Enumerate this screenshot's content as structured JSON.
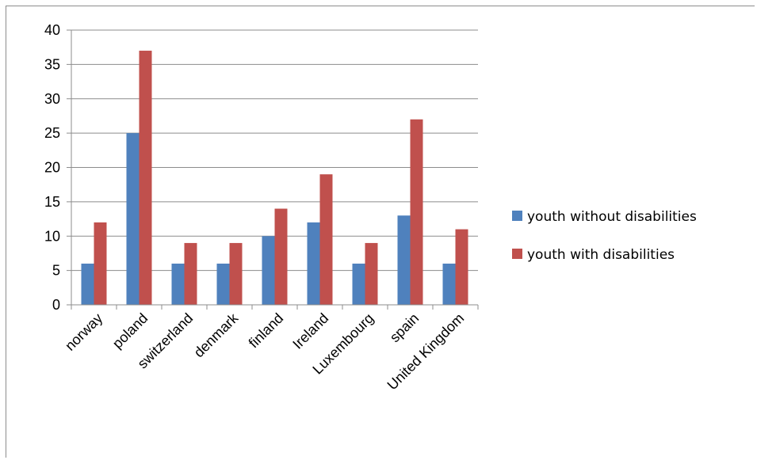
{
  "chart_data": {
    "type": "bar",
    "title": "",
    "xlabel": "",
    "ylabel": "",
    "ylim": [
      0,
      40
    ],
    "ytick_step": 5,
    "grid": true,
    "legend_position": "right",
    "categories": [
      "norway",
      "poland",
      "switzerland",
      "denmark",
      "finland",
      "Ireland",
      "Luxembourg",
      "spain",
      "United Kingdom"
    ],
    "series": [
      {
        "name": "youth without disabilities",
        "color": "#4f81bd",
        "values": [
          6,
          25,
          6,
          6,
          10,
          12,
          6,
          13,
          6
        ]
      },
      {
        "name": "youth with disabilities",
        "color": "#c0504d",
        "values": [
          12,
          37,
          9,
          9,
          14,
          19,
          9,
          27,
          11
        ]
      }
    ]
  }
}
